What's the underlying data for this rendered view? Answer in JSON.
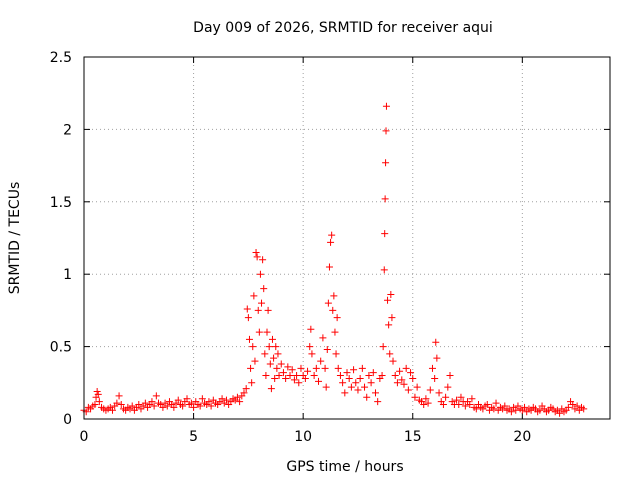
{
  "chart_data": {
    "type": "scatter",
    "title": "Day 009 of 2026, SRMTID for receiver aqui",
    "xlabel": "GPS time / hours",
    "ylabel": "SRMTID / TECUs",
    "xlim": [
      0,
      24
    ],
    "ylim": [
      0,
      2.5
    ],
    "x_ticks": [
      "0",
      "5",
      "10",
      "15",
      "20"
    ],
    "x_tick_values": [
      0,
      5,
      10,
      15,
      20
    ],
    "y_ticks": [
      "0",
      "0.5",
      "1",
      "1.5",
      "2",
      "2.5"
    ],
    "y_tick_values": [
      0,
      0.5,
      1,
      1.5,
      2,
      2.5
    ],
    "grid": true,
    "marker": "+",
    "color": "#ff0000",
    "series": [
      {
        "name": "SRMTID",
        "points": [
          [
            0.0,
            0.06
          ],
          [
            0.1,
            0.05
          ],
          [
            0.2,
            0.08
          ],
          [
            0.3,
            0.07
          ],
          [
            0.4,
            0.09
          ],
          [
            0.5,
            0.1
          ],
          [
            0.55,
            0.15
          ],
          [
            0.6,
            0.19
          ],
          [
            0.65,
            0.17
          ],
          [
            0.7,
            0.12
          ],
          [
            0.8,
            0.08
          ],
          [
            0.9,
            0.07
          ],
          [
            1.0,
            0.06
          ],
          [
            1.1,
            0.07
          ],
          [
            1.2,
            0.08
          ],
          [
            1.3,
            0.06
          ],
          [
            1.4,
            0.09
          ],
          [
            1.5,
            0.11
          ],
          [
            1.6,
            0.16
          ],
          [
            1.7,
            0.1
          ],
          [
            1.8,
            0.07
          ],
          [
            1.9,
            0.06
          ],
          [
            2.0,
            0.08
          ],
          [
            2.1,
            0.07
          ],
          [
            2.2,
            0.09
          ],
          [
            2.3,
            0.06
          ],
          [
            2.4,
            0.08
          ],
          [
            2.5,
            0.1
          ],
          [
            2.6,
            0.07
          ],
          [
            2.7,
            0.09
          ],
          [
            2.8,
            0.11
          ],
          [
            2.9,
            0.08
          ],
          [
            3.0,
            0.1
          ],
          [
            3.1,
            0.12
          ],
          [
            3.2,
            0.09
          ],
          [
            3.3,
            0.16
          ],
          [
            3.4,
            0.11
          ],
          [
            3.5,
            0.1
          ],
          [
            3.6,
            0.08
          ],
          [
            3.7,
            0.11
          ],
          [
            3.8,
            0.09
          ],
          [
            3.9,
            0.12
          ],
          [
            4.0,
            0.1
          ],
          [
            4.1,
            0.08
          ],
          [
            4.2,
            0.11
          ],
          [
            4.3,
            0.13
          ],
          [
            4.4,
            0.1
          ],
          [
            4.5,
            0.09
          ],
          [
            4.6,
            0.12
          ],
          [
            4.7,
            0.14
          ],
          [
            4.8,
            0.1
          ],
          [
            4.9,
            0.11
          ],
          [
            5.0,
            0.08
          ],
          [
            5.1,
            0.12
          ],
          [
            5.2,
            0.1
          ],
          [
            5.3,
            0.09
          ],
          [
            5.4,
            0.14
          ],
          [
            5.5,
            0.11
          ],
          [
            5.6,
            0.1
          ],
          [
            5.7,
            0.12
          ],
          [
            5.8,
            0.09
          ],
          [
            5.9,
            0.13
          ],
          [
            6.0,
            0.11
          ],
          [
            6.1,
            0.1
          ],
          [
            6.2,
            0.12
          ],
          [
            6.3,
            0.14
          ],
          [
            6.4,
            0.11
          ],
          [
            6.5,
            0.13
          ],
          [
            6.6,
            0.1
          ],
          [
            6.7,
            0.12
          ],
          [
            6.8,
            0.14
          ],
          [
            6.9,
            0.13
          ],
          [
            7.0,
            0.15
          ],
          [
            7.1,
            0.12
          ],
          [
            7.2,
            0.16
          ],
          [
            7.3,
            0.18
          ],
          [
            7.4,
            0.21
          ],
          [
            7.45,
            0.76
          ],
          [
            7.5,
            0.7
          ],
          [
            7.55,
            0.55
          ],
          [
            7.6,
            0.35
          ],
          [
            7.65,
            0.25
          ],
          [
            7.7,
            0.5
          ],
          [
            7.75,
            0.85
          ],
          [
            7.8,
            0.4
          ],
          [
            7.85,
            1.15
          ],
          [
            7.9,
            1.12
          ],
          [
            7.95,
            0.75
          ],
          [
            8.0,
            0.6
          ],
          [
            8.05,
            1.0
          ],
          [
            8.1,
            0.8
          ],
          [
            8.15,
            1.1
          ],
          [
            8.2,
            0.9
          ],
          [
            8.25,
            0.45
          ],
          [
            8.3,
            0.3
          ],
          [
            8.35,
            0.6
          ],
          [
            8.4,
            0.75
          ],
          [
            8.45,
            0.5
          ],
          [
            8.5,
            0.38
          ],
          [
            8.55,
            0.21
          ],
          [
            8.6,
            0.55
          ],
          [
            8.65,
            0.42
          ],
          [
            8.7,
            0.28
          ],
          [
            8.75,
            0.5
          ],
          [
            8.8,
            0.35
          ],
          [
            8.85,
            0.45
          ],
          [
            8.9,
            0.3
          ],
          [
            9.0,
            0.38
          ],
          [
            9.1,
            0.32
          ],
          [
            9.2,
            0.28
          ],
          [
            9.3,
            0.36
          ],
          [
            9.4,
            0.3
          ],
          [
            9.5,
            0.34
          ],
          [
            9.6,
            0.27
          ],
          [
            9.7,
            0.3
          ],
          [
            9.8,
            0.25
          ],
          [
            9.9,
            0.35
          ],
          [
            10.0,
            0.3
          ],
          [
            10.1,
            0.28
          ],
          [
            10.2,
            0.33
          ],
          [
            10.3,
            0.5
          ],
          [
            10.35,
            0.62
          ],
          [
            10.4,
            0.45
          ],
          [
            10.5,
            0.3
          ],
          [
            10.6,
            0.35
          ],
          [
            10.7,
            0.26
          ],
          [
            10.8,
            0.4
          ],
          [
            10.9,
            0.56
          ],
          [
            11.0,
            0.35
          ],
          [
            11.05,
            0.22
          ],
          [
            11.1,
            0.48
          ],
          [
            11.15,
            0.8
          ],
          [
            11.2,
            1.05
          ],
          [
            11.25,
            1.22
          ],
          [
            11.3,
            1.27
          ],
          [
            11.35,
            0.75
          ],
          [
            11.4,
            0.85
          ],
          [
            11.45,
            0.6
          ],
          [
            11.5,
            0.45
          ],
          [
            11.55,
            0.7
          ],
          [
            11.6,
            0.35
          ],
          [
            11.7,
            0.3
          ],
          [
            11.8,
            0.25
          ],
          [
            11.9,
            0.18
          ],
          [
            12.0,
            0.32
          ],
          [
            12.1,
            0.28
          ],
          [
            12.2,
            0.22
          ],
          [
            12.3,
            0.34
          ],
          [
            12.4,
            0.25
          ],
          [
            12.5,
            0.2
          ],
          [
            12.6,
            0.28
          ],
          [
            12.7,
            0.35
          ],
          [
            12.8,
            0.22
          ],
          [
            12.9,
            0.15
          ],
          [
            13.0,
            0.3
          ],
          [
            13.1,
            0.25
          ],
          [
            13.2,
            0.32
          ],
          [
            13.3,
            0.18
          ],
          [
            13.4,
            0.12
          ],
          [
            13.5,
            0.28
          ],
          [
            13.6,
            0.3
          ],
          [
            13.65,
            0.5
          ],
          [
            13.7,
            1.03
          ],
          [
            13.72,
            1.28
          ],
          [
            13.74,
            1.52
          ],
          [
            13.76,
            1.77
          ],
          [
            13.78,
            1.99
          ],
          [
            13.8,
            2.16
          ],
          [
            13.85,
            0.82
          ],
          [
            13.9,
            0.65
          ],
          [
            13.95,
            0.45
          ],
          [
            14.0,
            0.86
          ],
          [
            14.05,
            0.7
          ],
          [
            14.1,
            0.4
          ],
          [
            14.2,
            0.3
          ],
          [
            14.3,
            0.25
          ],
          [
            14.4,
            0.33
          ],
          [
            14.5,
            0.27
          ],
          [
            14.6,
            0.24
          ],
          [
            14.7,
            0.35
          ],
          [
            14.8,
            0.2
          ],
          [
            14.9,
            0.32
          ],
          [
            15.0,
            0.28
          ],
          [
            15.1,
            0.15
          ],
          [
            15.2,
            0.22
          ],
          [
            15.3,
            0.13
          ],
          [
            15.4,
            0.12
          ],
          [
            15.5,
            0.1
          ],
          [
            15.6,
            0.14
          ],
          [
            15.7,
            0.11
          ],
          [
            15.8,
            0.2
          ],
          [
            15.9,
            0.35
          ],
          [
            16.0,
            0.28
          ],
          [
            16.05,
            0.53
          ],
          [
            16.1,
            0.42
          ],
          [
            16.2,
            0.18
          ],
          [
            16.3,
            0.12
          ],
          [
            16.4,
            0.1
          ],
          [
            16.5,
            0.15
          ],
          [
            16.6,
            0.22
          ],
          [
            16.7,
            0.3
          ],
          [
            16.8,
            0.12
          ],
          [
            16.9,
            0.1
          ],
          [
            17.0,
            0.13
          ],
          [
            17.1,
            0.1
          ],
          [
            17.2,
            0.15
          ],
          [
            17.3,
            0.12
          ],
          [
            17.4,
            0.09
          ],
          [
            17.5,
            0.12
          ],
          [
            17.6,
            0.1
          ],
          [
            17.7,
            0.14
          ],
          [
            17.8,
            0.08
          ],
          [
            17.9,
            0.07
          ],
          [
            18.0,
            0.1
          ],
          [
            18.1,
            0.08
          ],
          [
            18.2,
            0.07
          ],
          [
            18.3,
            0.09
          ],
          [
            18.4,
            0.1
          ],
          [
            18.5,
            0.06
          ],
          [
            18.6,
            0.08
          ],
          [
            18.7,
            0.07
          ],
          [
            18.8,
            0.11
          ],
          [
            18.9,
            0.06
          ],
          [
            19.0,
            0.08
          ],
          [
            19.1,
            0.07
          ],
          [
            19.2,
            0.09
          ],
          [
            19.3,
            0.06
          ],
          [
            19.4,
            0.07
          ],
          [
            19.5,
            0.05
          ],
          [
            19.6,
            0.08
          ],
          [
            19.7,
            0.06
          ],
          [
            19.8,
            0.09
          ],
          [
            19.9,
            0.07
          ],
          [
            20.0,
            0.06
          ],
          [
            20.1,
            0.08
          ],
          [
            20.2,
            0.05
          ],
          [
            20.3,
            0.07
          ],
          [
            20.4,
            0.06
          ],
          [
            20.5,
            0.08
          ],
          [
            20.6,
            0.07
          ],
          [
            20.7,
            0.05
          ],
          [
            20.8,
            0.06
          ],
          [
            20.9,
            0.09
          ],
          [
            21.0,
            0.07
          ],
          [
            21.1,
            0.05
          ],
          [
            21.2,
            0.06
          ],
          [
            21.3,
            0.08
          ],
          [
            21.4,
            0.07
          ],
          [
            21.5,
            0.05
          ],
          [
            21.6,
            0.06
          ],
          [
            21.7,
            0.04
          ],
          [
            21.8,
            0.07
          ],
          [
            21.9,
            0.05
          ],
          [
            22.0,
            0.06
          ],
          [
            22.1,
            0.08
          ],
          [
            22.2,
            0.12
          ],
          [
            22.3,
            0.1
          ],
          [
            22.4,
            0.07
          ],
          [
            22.5,
            0.09
          ],
          [
            22.6,
            0.06
          ],
          [
            22.7,
            0.08
          ],
          [
            22.8,
            0.07
          ]
        ]
      }
    ]
  }
}
